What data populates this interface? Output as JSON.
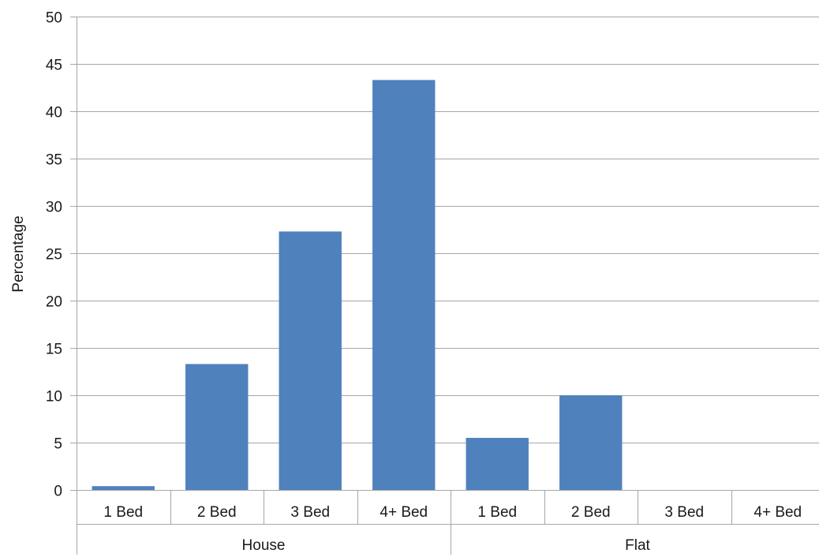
{
  "chart_data": {
    "type": "bar",
    "title": "",
    "xlabel": "",
    "ylabel": "Percentage",
    "ylim": [
      0,
      50
    ],
    "ytick_step": 5,
    "grid": true,
    "legend": "none",
    "bar_color": "#4f81bd",
    "groups": [
      {
        "name": "House",
        "categories": [
          "1 Bed",
          "2 Bed",
          "3 Bed",
          "4+ Bed"
        ],
        "values": [
          0.4,
          13.3,
          27.3,
          43.3
        ]
      },
      {
        "name": "Flat",
        "categories": [
          "1 Bed",
          "2 Bed",
          "3 Bed",
          "4+ Bed"
        ],
        "values": [
          5.5,
          10.0,
          0,
          0
        ]
      }
    ]
  }
}
